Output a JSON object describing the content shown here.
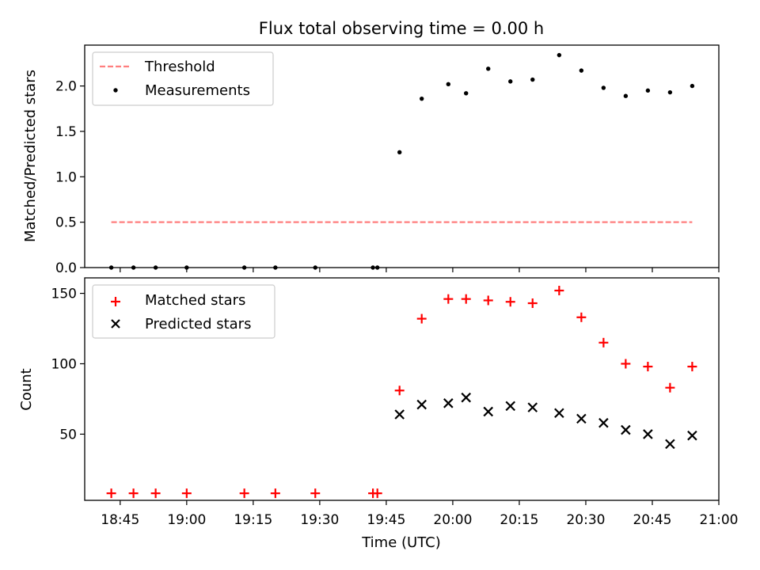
{
  "figure": {
    "title": "Flux total observing time = 0.00 h"
  },
  "chart_data": [
    {
      "type": "scatter",
      "panel": "top",
      "title": "Flux total observing time = 0.00 h",
      "xlabel": "",
      "ylabel": "Matched/Predicted stars",
      "xlim": [
        "18:37",
        "21:00"
      ],
      "ylim": [
        0,
        2.45
      ],
      "yticks": [
        0.0,
        0.5,
        1.0,
        1.5,
        2.0
      ],
      "ytick_labels": [
        "0.0",
        "0.5",
        "1.0",
        "1.5",
        "2.0"
      ],
      "legend_position": "upper-left",
      "grid": false,
      "series": [
        {
          "name": "Threshold",
          "kind": "line",
          "style": "dashed",
          "color": "#ff7f7f",
          "x": [
            "18:43",
            "20:54"
          ],
          "y": [
            0.5,
            0.5
          ]
        },
        {
          "name": "Measurements",
          "kind": "scatter",
          "marker": "dot",
          "color": "#000000",
          "x": [
            "18:43",
            "18:48",
            "18:53",
            "19:00",
            "19:13",
            "19:20",
            "19:29",
            "19:42",
            "19:43",
            "19:48",
            "19:53",
            "19:59",
            "20:03",
            "20:08",
            "20:13",
            "20:18",
            "20:24",
            "20:29",
            "20:34",
            "20:39",
            "20:44",
            "20:49",
            "20:54"
          ],
          "y": [
            0,
            0,
            0,
            0,
            0,
            0,
            0,
            0,
            0,
            1.27,
            1.86,
            2.02,
            1.92,
            2.19,
            2.05,
            2.07,
            2.34,
            2.17,
            1.98,
            1.89,
            1.95,
            1.93,
            2.0
          ]
        }
      ]
    },
    {
      "type": "scatter",
      "panel": "bottom",
      "title": "",
      "xlabel": "Time (UTC)",
      "ylabel": "Count",
      "xlim": [
        "18:37",
        "21:00"
      ],
      "ylim": [
        3,
        161
      ],
      "xticks": [
        "18:45",
        "19:00",
        "19:15",
        "19:30",
        "19:45",
        "20:00",
        "20:15",
        "20:30",
        "20:45",
        "21:00"
      ],
      "yticks": [
        50,
        100,
        150
      ],
      "ytick_labels": [
        "50",
        "100",
        "150"
      ],
      "legend_position": "upper-left",
      "grid": false,
      "series": [
        {
          "name": "Matched stars",
          "kind": "scatter",
          "marker": "plus",
          "color": "#ff0000",
          "x": [
            "18:43",
            "18:48",
            "18:53",
            "19:00",
            "19:13",
            "19:20",
            "19:29",
            "19:42",
            "19:43",
            "19:48",
            "19:53",
            "19:59",
            "20:03",
            "20:08",
            "20:13",
            "20:18",
            "20:24",
            "20:29",
            "20:34",
            "20:39",
            "20:44",
            "20:49",
            "20:54"
          ],
          "y": [
            8,
            8,
            8,
            8,
            8,
            8,
            8,
            8,
            8,
            81,
            132,
            146,
            146,
            145,
            144,
            143,
            152,
            133,
            115,
            100,
            98,
            83,
            98
          ]
        },
        {
          "name": "Predicted stars",
          "kind": "scatter",
          "marker": "x",
          "color": "#000000",
          "x": [
            "19:48",
            "19:53",
            "19:59",
            "20:03",
            "20:08",
            "20:13",
            "20:18",
            "20:24",
            "20:29",
            "20:34",
            "20:39",
            "20:44",
            "20:49",
            "20:54"
          ],
          "y": [
            64,
            71,
            72,
            76,
            66,
            70,
            69,
            65,
            61,
            58,
            53,
            50,
            43,
            49
          ]
        }
      ]
    }
  ]
}
